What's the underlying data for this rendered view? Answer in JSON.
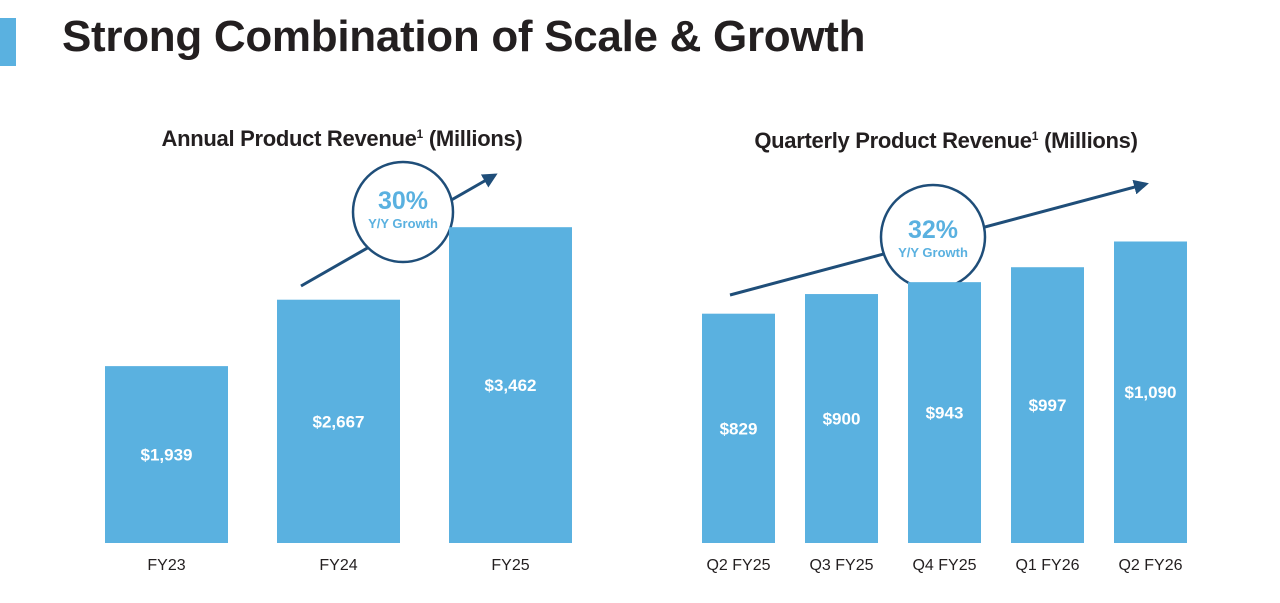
{
  "page": {
    "title": "Strong Combination of Scale & Growth"
  },
  "colors": {
    "bar": "#5ab1e0",
    "arrow": "#1f4e79",
    "title": "#231f20",
    "accent": "#5ab1e0"
  },
  "chart_data": [
    {
      "type": "bar",
      "title": "Annual Product Revenue",
      "title_superscript": "1",
      "title_suffix": "(Millions)",
      "categories": [
        "FY23",
        "FY24",
        "FY25"
      ],
      "values": [
        1939,
        2667,
        3462
      ],
      "value_labels": [
        "$1,939",
        "$2,667",
        "$3,462"
      ],
      "growth_badge": {
        "value": "30%",
        "label": "Y/Y Growth"
      },
      "ylim": [
        0,
        3760
      ],
      "grid": false,
      "y_axis_shown": false
    },
    {
      "type": "bar",
      "title": "Quarterly Product Revenue",
      "title_superscript": "1",
      "title_suffix": "(Millions)",
      "categories": [
        "Q2 FY25",
        "Q3 FY25",
        "Q4 FY25",
        "Q1 FY26",
        "Q2 FY26"
      ],
      "values": [
        829,
        900,
        943,
        997,
        1090
      ],
      "value_labels": [
        "$829",
        "$900",
        "$943",
        "$997",
        "$1,090"
      ],
      "growth_badge": {
        "value": "32%",
        "label": "Y/Y Growth"
      },
      "ylim": [
        0,
        1240
      ],
      "grid": false,
      "y_axis_shown": false
    }
  ]
}
